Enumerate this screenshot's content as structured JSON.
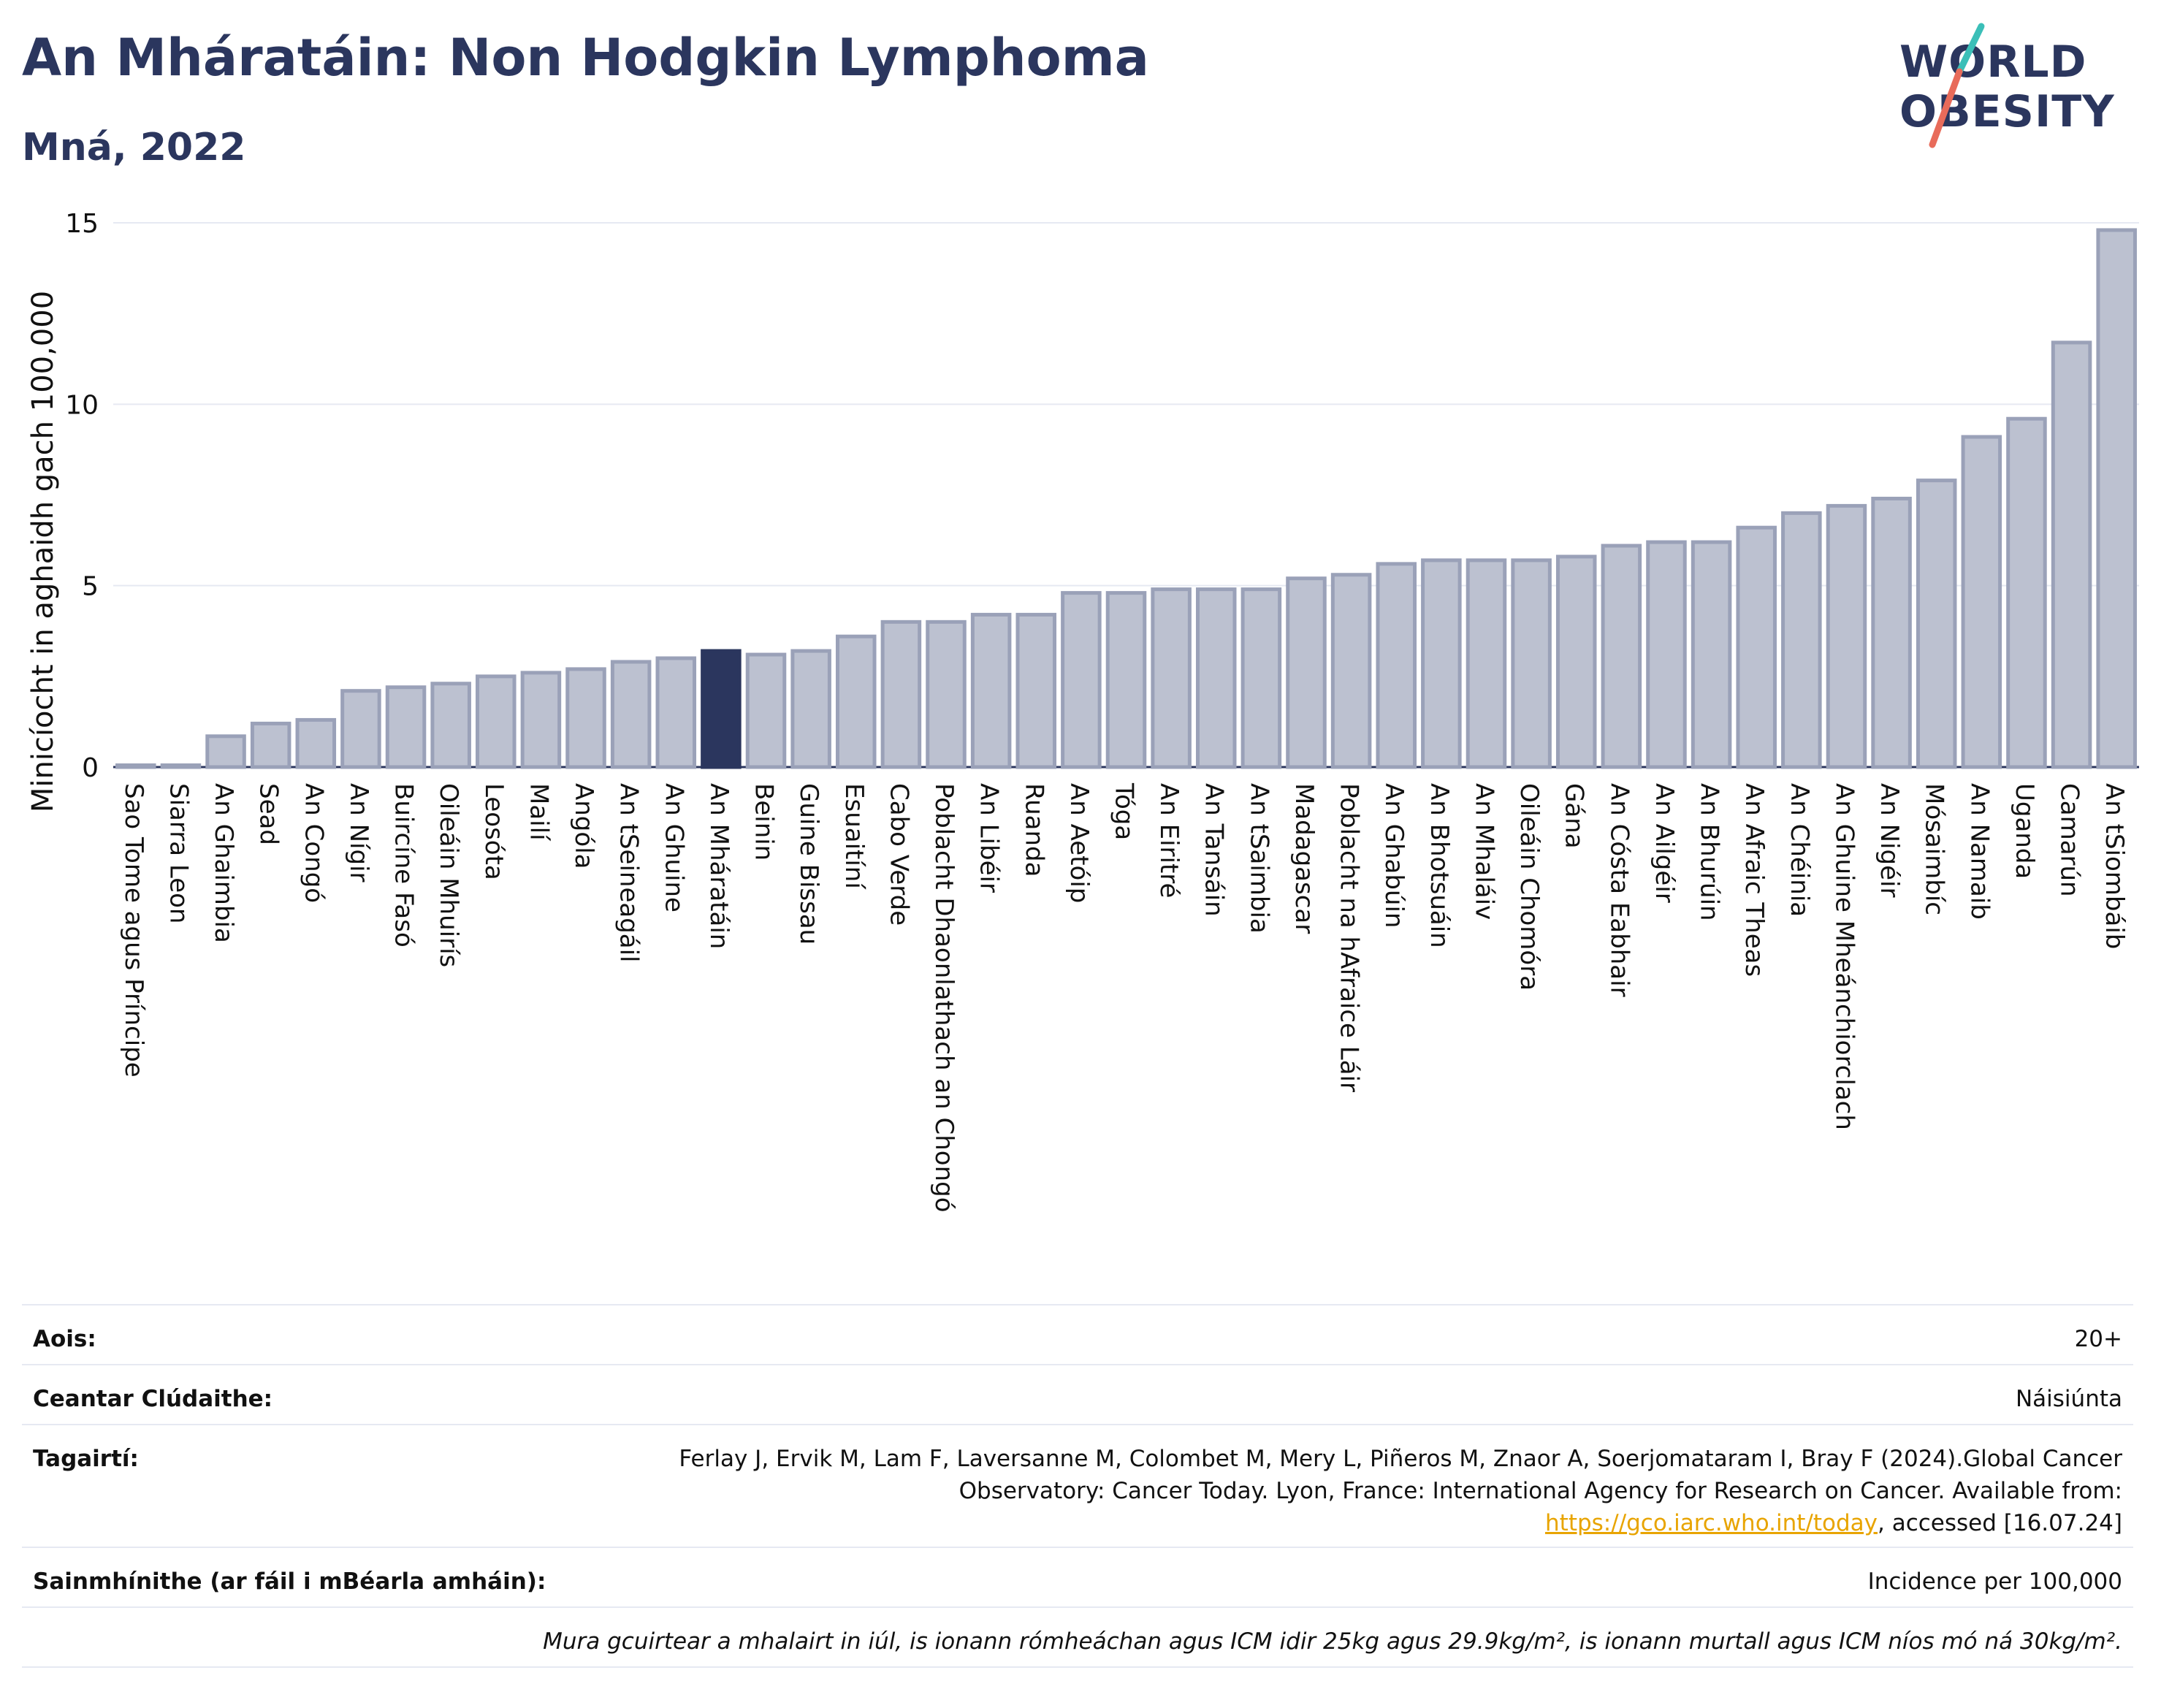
{
  "header": {
    "title": "An Mháratáin: Non Hodgkin Lymphoma",
    "subtitle": "Mná, 2022"
  },
  "logo": {
    "line1": "WORLD",
    "line2": "OBESITY",
    "colors": {
      "text": "#2b365e",
      "slash_top": "#3bbfb8",
      "slash_bottom": "#e86b5a"
    }
  },
  "colors": {
    "bar_fill": "#bcc1d0",
    "bar_stroke": "#9aa1b8",
    "highlight_fill": "#2b365e",
    "axis_text": "#111111",
    "grid": "#e6e9f2"
  },
  "chart_data": {
    "type": "bar",
    "title": "",
    "xlabel": "",
    "ylabel": "Minicíocht in aghaidh gach 100,000",
    "ylim": [
      0,
      15
    ],
    "yticks": [
      0,
      5,
      10,
      15
    ],
    "grid": true,
    "highlight": "An Mháratáin",
    "categories": [
      "Sao Tome agus Príncipe",
      "Siarra Leon",
      "An Ghaimbia",
      "Sead",
      "An Congó",
      "An Nígir",
      "Buircíne Fasó",
      "Oileáin Mhuirís",
      "Leosóta",
      "Mailí",
      "Angóla",
      "An tSeineagáil",
      "An Ghuine",
      "An Mháratáin",
      "Beinin",
      "Guine Bissau",
      "Esuaitíní",
      "Cabo Verde",
      "Poblacht Dhaonlathach an Chongó",
      "An Libéir",
      "Ruanda",
      "An Aetóip",
      "Tóga",
      "An Eiritré",
      "An Tansáin",
      "An tSaimbia",
      "Madagascar",
      "Poblacht na hAfraice Láir",
      "An Ghabúin",
      "An Bhotsuáin",
      "An Mhaláiv",
      "Oileáin Chomóra",
      "Gána",
      "An Cósta Eabhair",
      "An Ailgéir",
      "An Bhurúin",
      "An Afraic Theas",
      "An Chéinia",
      "An Ghuine Mheánchiorclach",
      "An Nigéir",
      "Mósaimbíc",
      "An Namaib",
      "Uganda",
      "Camarún",
      "An tSiombáib"
    ],
    "values": [
      0.05,
      0.05,
      0.85,
      1.2,
      1.3,
      2.1,
      2.2,
      2.3,
      2.5,
      2.6,
      2.7,
      2.9,
      3.0,
      3.2,
      3.1,
      3.2,
      3.6,
      4.0,
      4.0,
      4.2,
      4.2,
      4.8,
      4.8,
      4.9,
      4.9,
      4.9,
      5.2,
      5.3,
      5.6,
      5.7,
      5.7,
      5.7,
      5.8,
      6.1,
      6.2,
      6.2,
      6.6,
      7.0,
      7.2,
      7.4,
      7.9,
      9.1,
      9.6,
      11.7,
      14.8
    ]
  },
  "info": {
    "age_label": "Aois:",
    "age_value": "20+",
    "area_label": "Ceantar Clúdaithe:",
    "area_value": "Náisiúnta",
    "refs_label": "Tagairtí:",
    "refs_text_1": "Ferlay J, Ervik M, Lam F, Laversanne M, Colombet M, Mery L, Piñeros M, Znaor A, Soerjomataram I, Bray F (2024).Global Cancer Observatory: Cancer Today. Lyon, France: International Agency for Research on Cancer. Available from: ",
    "refs_link": "https://gco.iarc.who.int/today",
    "refs_text_2": ", accessed [16.07.24]",
    "defs_label": "Sainmhínithe (ar fáil i mBéarla amháin):",
    "defs_value": "Incidence per 100,000",
    "note": "Mura gcuirtear a mhalairt in iúl, is ionann rómheáchan agus ICM idir 25kg agus 29.9kg/m², is ionann murtall agus ICM níos mó ná 30kg/m²."
  }
}
